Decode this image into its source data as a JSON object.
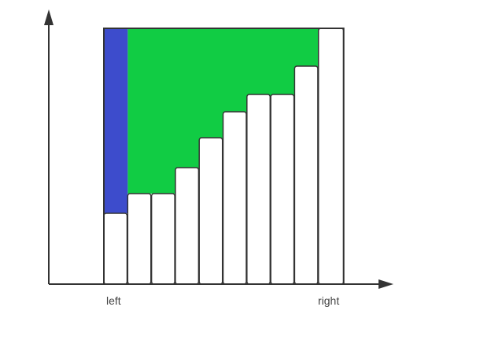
{
  "labels": {
    "left": "left",
    "right": "right"
  },
  "bars": {
    "count": 10,
    "heights": [
      90,
      115,
      115,
      148,
      186,
      219,
      241,
      241,
      277,
      325
    ],
    "fill": "#ffffff"
  },
  "highlight": {
    "blue_fill": "#3d4ccc",
    "green_fill": "#11cc44"
  },
  "colors": {
    "axis": "#333333",
    "background": "#ffffff"
  }
}
